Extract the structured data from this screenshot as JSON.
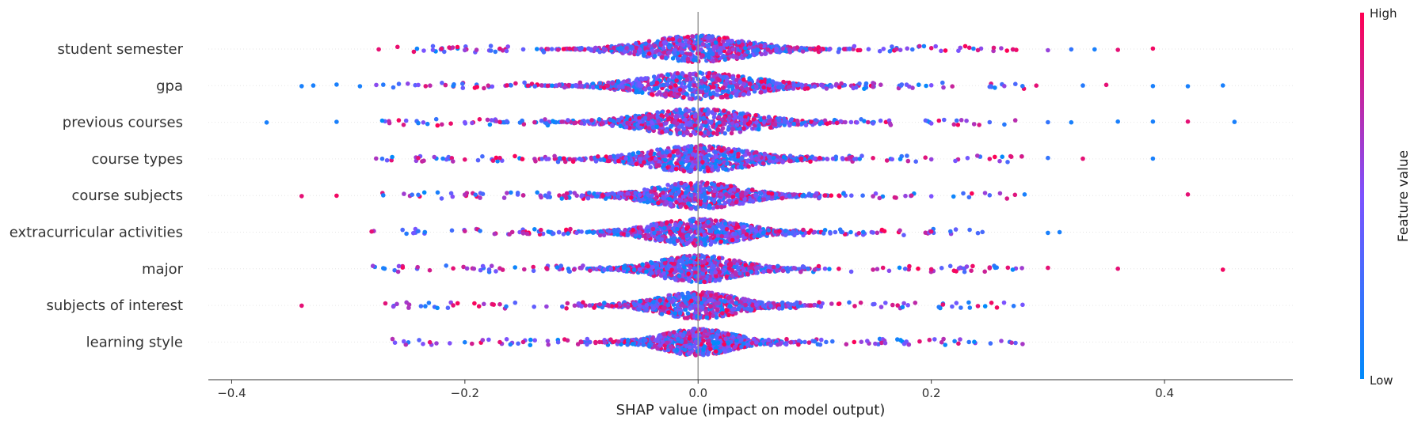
{
  "chart_data": {
    "type": "scatter",
    "subtype": "shap-beeswarm",
    "title": "",
    "xlabel": "SHAP value (impact on model output)",
    "ylabel": "",
    "xlim": [
      -0.42,
      0.51
    ],
    "xticks": [
      -0.4,
      -0.2,
      0.0,
      0.2,
      0.4
    ],
    "xtick_labels": [
      "−0.4",
      "−0.2",
      "0.0",
      "0.2",
      "0.4"
    ],
    "zero_line": true,
    "grid": false,
    "colorbar": {
      "title": "Feature value",
      "high_label": "High",
      "low_label": "Low",
      "low_color": "#008bfb",
      "mid_color": "#7c52ff",
      "high_color": "#ff0052"
    },
    "features": [
      {
        "name": "student semester",
        "sample_points": [
          [
            -0.22,
            0.9
          ],
          [
            -0.2,
            0.6
          ],
          [
            -0.19,
            0.7
          ],
          [
            -0.17,
            0.9
          ],
          [
            -0.15,
            0.4
          ],
          [
            -0.12,
            0.8
          ],
          [
            -0.1,
            0.3
          ],
          [
            -0.08,
            0.6
          ],
          [
            -0.05,
            0.5
          ],
          [
            -0.02,
            0.4
          ],
          [
            0.0,
            0.5
          ],
          [
            0.03,
            0.6
          ],
          [
            0.06,
            0.8
          ],
          [
            0.1,
            0.9
          ],
          [
            0.13,
            0.3
          ],
          [
            0.17,
            0.8
          ],
          [
            0.2,
            0.9
          ],
          [
            0.24,
            0.85
          ],
          [
            0.27,
            0.9
          ],
          [
            0.3,
            0.6
          ],
          [
            0.32,
            0.2
          ],
          [
            0.34,
            0.1
          ],
          [
            0.36,
            0.9
          ],
          [
            0.39,
            0.95
          ]
        ]
      },
      {
        "name": "gpa",
        "sample_points": [
          [
            -0.34,
            0.1
          ],
          [
            -0.33,
            0.1
          ],
          [
            -0.31,
            0.1
          ],
          [
            -0.29,
            0.1
          ],
          [
            -0.27,
            0.15
          ],
          [
            -0.24,
            0.5
          ],
          [
            -0.21,
            0.1
          ],
          [
            -0.18,
            0.8
          ],
          [
            -0.14,
            0.3
          ],
          [
            -0.1,
            0.6
          ],
          [
            -0.05,
            0.5
          ],
          [
            0.0,
            0.5
          ],
          [
            0.05,
            0.6
          ],
          [
            0.1,
            0.4
          ],
          [
            0.15,
            0.7
          ],
          [
            0.2,
            0.5
          ],
          [
            0.25,
            0.3
          ],
          [
            0.29,
            0.9
          ],
          [
            0.33,
            0.15
          ],
          [
            0.35,
            0.9
          ],
          [
            0.39,
            0.1
          ],
          [
            0.42,
            0.1
          ],
          [
            0.45,
            0.1
          ]
        ]
      },
      {
        "name": "previous courses",
        "sample_points": [
          [
            -0.37,
            0.1
          ],
          [
            -0.31,
            0.1
          ],
          [
            -0.24,
            0.1
          ],
          [
            -0.2,
            0.5
          ],
          [
            -0.17,
            0.9
          ],
          [
            -0.13,
            0.2
          ],
          [
            -0.1,
            0.6
          ],
          [
            -0.05,
            0.5
          ],
          [
            0.0,
            0.5
          ],
          [
            0.05,
            0.5
          ],
          [
            0.1,
            0.6
          ],
          [
            0.15,
            0.4
          ],
          [
            0.2,
            0.5
          ],
          [
            0.25,
            0.3
          ],
          [
            0.3,
            0.2
          ],
          [
            0.32,
            0.1
          ],
          [
            0.36,
            0.1
          ],
          [
            0.39,
            0.1
          ],
          [
            0.42,
            0.9
          ],
          [
            0.46,
            0.1
          ]
        ]
      },
      {
        "name": "course types",
        "sample_points": [
          [
            -0.24,
            0.9
          ],
          [
            -0.2,
            0.9
          ],
          [
            -0.17,
            0.9
          ],
          [
            -0.13,
            0.5
          ],
          [
            -0.1,
            0.4
          ],
          [
            -0.05,
            0.5
          ],
          [
            0.0,
            0.5
          ],
          [
            0.05,
            0.6
          ],
          [
            0.1,
            0.5
          ],
          [
            0.15,
            0.9
          ],
          [
            0.2,
            0.6
          ],
          [
            0.25,
            0.9
          ],
          [
            0.3,
            0.2
          ],
          [
            0.33,
            0.9
          ],
          [
            0.39,
            0.1
          ]
        ]
      },
      {
        "name": "course subjects",
        "sample_points": [
          [
            -0.34,
            0.9
          ],
          [
            -0.31,
            0.95
          ],
          [
            -0.27,
            0.1
          ],
          [
            -0.24,
            0.2
          ],
          [
            -0.2,
            0.7
          ],
          [
            -0.15,
            0.8
          ],
          [
            -0.1,
            0.5
          ],
          [
            -0.05,
            0.5
          ],
          [
            0.0,
            0.5
          ],
          [
            0.05,
            0.4
          ],
          [
            0.1,
            0.6
          ],
          [
            0.15,
            0.7
          ],
          [
            0.2,
            0.5
          ],
          [
            0.25,
            0.3
          ],
          [
            0.28,
            0.1
          ],
          [
            0.42,
            0.9
          ]
        ]
      },
      {
        "name": "extracurricular activities",
        "sample_points": [
          [
            -0.28,
            0.9
          ],
          [
            -0.24,
            0.2
          ],
          [
            -0.2,
            0.8
          ],
          [
            -0.15,
            0.7
          ],
          [
            -0.1,
            0.4
          ],
          [
            -0.05,
            0.6
          ],
          [
            0.0,
            0.5
          ],
          [
            0.05,
            0.5
          ],
          [
            0.1,
            0.6
          ],
          [
            0.15,
            0.4
          ],
          [
            0.2,
            0.9
          ],
          [
            0.24,
            0.3
          ],
          [
            0.3,
            0.1
          ],
          [
            0.31,
            0.1
          ]
        ]
      },
      {
        "name": "major",
        "sample_points": [
          [
            -0.27,
            0.1
          ],
          [
            -0.21,
            0.9
          ],
          [
            -0.17,
            0.8
          ],
          [
            -0.13,
            0.9
          ],
          [
            -0.1,
            0.6
          ],
          [
            -0.05,
            0.5
          ],
          [
            0.0,
            0.4
          ],
          [
            0.05,
            0.6
          ],
          [
            0.1,
            0.7
          ],
          [
            0.15,
            0.8
          ],
          [
            0.2,
            0.9
          ],
          [
            0.25,
            0.85
          ],
          [
            0.3,
            0.9
          ],
          [
            0.36,
            0.9
          ],
          [
            0.45,
            0.95
          ]
        ]
      },
      {
        "name": "subjects of interest",
        "sample_points": [
          [
            -0.34,
            0.9
          ],
          [
            -0.21,
            0.9
          ],
          [
            -0.17,
            0.8
          ],
          [
            -0.13,
            0.6
          ],
          [
            -0.1,
            0.5
          ],
          [
            -0.05,
            0.5
          ],
          [
            0.0,
            0.5
          ],
          [
            0.05,
            0.5
          ],
          [
            0.1,
            0.6
          ],
          [
            0.15,
            0.4
          ],
          [
            0.18,
            0.5
          ],
          [
            0.21,
            0.9
          ],
          [
            0.24,
            0.9
          ]
        ]
      },
      {
        "name": "learning style",
        "sample_points": [
          [
            -0.23,
            0.9
          ],
          [
            -0.2,
            0.1
          ],
          [
            -0.17,
            0.9
          ],
          [
            -0.15,
            0.85
          ],
          [
            -0.12,
            0.4
          ],
          [
            -0.08,
            0.6
          ],
          [
            -0.05,
            0.3
          ],
          [
            0.0,
            0.4
          ],
          [
            0.05,
            0.5
          ],
          [
            0.1,
            0.2
          ],
          [
            0.14,
            0.6
          ],
          [
            0.19,
            0.9
          ],
          [
            0.22,
            0.1
          ],
          [
            0.26,
            0.6
          ]
        ]
      }
    ]
  }
}
